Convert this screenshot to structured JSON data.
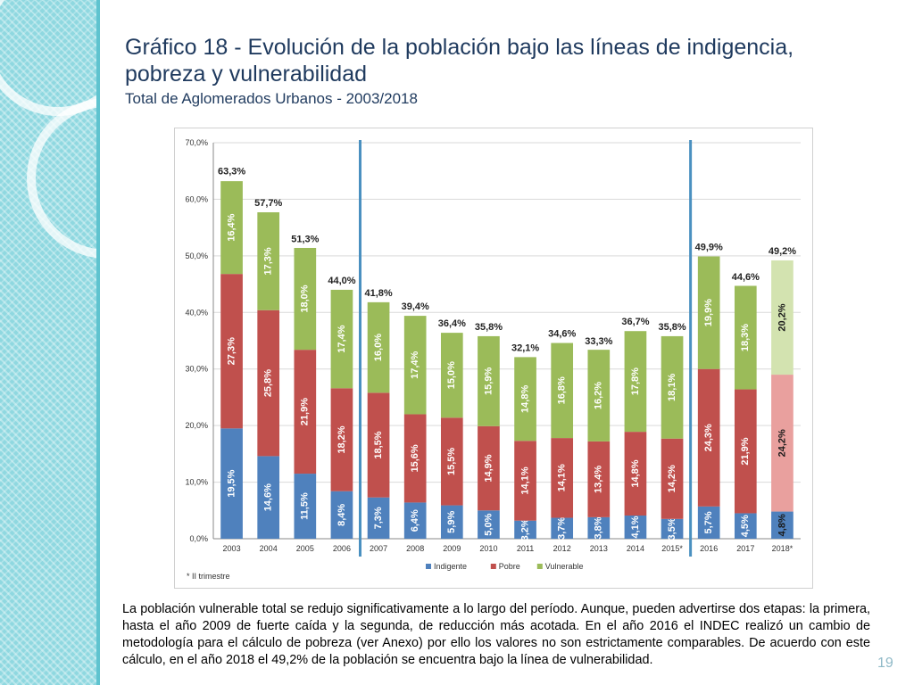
{
  "title": {
    "line1": "Gráfico 18 - Evolución de la población bajo las líneas de indigencia,",
    "line2": "pobreza y vulnerabilidad",
    "line3": "Total de Aglomerados Urbanos - 2003/2018"
  },
  "chart_data": {
    "type": "bar",
    "stacked": true,
    "categories": [
      "2003",
      "2004",
      "2005",
      "2006",
      "2007",
      "2008",
      "2009",
      "2010",
      "2011",
      "2012",
      "2013",
      "2014",
      "2015*",
      "2016",
      "2017",
      "2018*"
    ],
    "series": [
      {
        "name": "Indigente",
        "color": "#4f81bd",
        "values": [
          19.5,
          14.6,
          11.5,
          8.4,
          7.3,
          6.4,
          5.9,
          5.0,
          3.2,
          3.7,
          3.8,
          4.1,
          3.5,
          5.7,
          4.5,
          4.8
        ],
        "labels": [
          "19,5%",
          "14,6%",
          "11,5%",
          "8,4%",
          "7,3%",
          "6,4%",
          "5,9%",
          "5,0%",
          "3,2%",
          "3,7%",
          "3,8%",
          "4,1%",
          "3,5%",
          "5,7%",
          "4,5%",
          "4,8%"
        ]
      },
      {
        "name": "Pobre",
        "color": "#c0504d",
        "values": [
          27.3,
          25.8,
          21.9,
          18.2,
          18.5,
          15.6,
          15.5,
          14.9,
          14.1,
          14.1,
          13.4,
          14.8,
          14.2,
          24.3,
          21.9,
          24.2
        ],
        "labels": [
          "27,3%",
          "25,8%",
          "21,9%",
          "18,2%",
          "18,5%",
          "15,6%",
          "15,5%",
          "14,9%",
          "14,1%",
          "14,1%",
          "13,4%",
          "14,8%",
          "14,2%",
          "24,3%",
          "21,9%",
          "24,2%"
        ]
      },
      {
        "name": "Vulnerable",
        "color": "#9bbb59",
        "values": [
          16.4,
          17.3,
          18.0,
          17.4,
          16.0,
          17.4,
          15.0,
          15.9,
          14.8,
          16.8,
          16.2,
          17.8,
          18.1,
          19.9,
          18.3,
          20.2
        ],
        "labels": [
          "16,4%",
          "17,3%",
          "18,0%",
          "17,4%",
          "16,0%",
          "17,4%",
          "15,0%",
          "15,9%",
          "14,8%",
          "16,8%",
          "16,2%",
          "17,8%",
          "18,1%",
          "19,9%",
          "18,3%",
          "20,2%"
        ]
      }
    ],
    "totals": [
      63.3,
      57.7,
      51.3,
      44.0,
      41.8,
      39.4,
      36.4,
      35.8,
      32.1,
      34.6,
      33.3,
      36.7,
      35.8,
      49.9,
      44.6,
      49.2
    ],
    "total_labels": [
      "63,3%",
      "57,7%",
      "51,3%",
      "44,0%",
      "41,8%",
      "39,4%",
      "36,4%",
      "35,8%",
      "32,1%",
      "34,6%",
      "33,3%",
      "36,7%",
      "35,8%",
      "49,9%",
      "44,6%",
      "49,2%"
    ],
    "ylim": [
      0,
      70
    ],
    "yticks": [
      0,
      10,
      20,
      30,
      40,
      50,
      60,
      70
    ],
    "ytick_labels": [
      "0,0%",
      "10,0%",
      "20,0%",
      "30,0%",
      "40,0%",
      "50,0%",
      "60,0%",
      "70,0%"
    ],
    "grid": true,
    "legend_position": "bottom",
    "footnote": "* II trimestre",
    "highlight_last_category": true,
    "highlight_colors": {
      "Indigente": "#4f81bd",
      "Pobre": "#e9a09e",
      "Vulnerable": "#d3e3b0"
    },
    "divider_after_categories": [
      "2006",
      "2015*"
    ],
    "divider_color": "#4a90c0"
  },
  "description": "La población vulnerable total se redujo significativamente a lo largo del período. Aunque, pueden advertirse dos etapas: la primera, hasta el año 2009 de fuerte caída y la segunda, de reducción más acotada.  En el año 2016 el INDEC realizó un cambio de metodología para el cálculo de pobreza (ver Anexo) por ello los valores no son estrictamente comparables. De acuerdo con este cálculo, en el año 2018 el 49,2% de la población se encuentra bajo la línea de vulnerabilidad.",
  "page_number": "19"
}
